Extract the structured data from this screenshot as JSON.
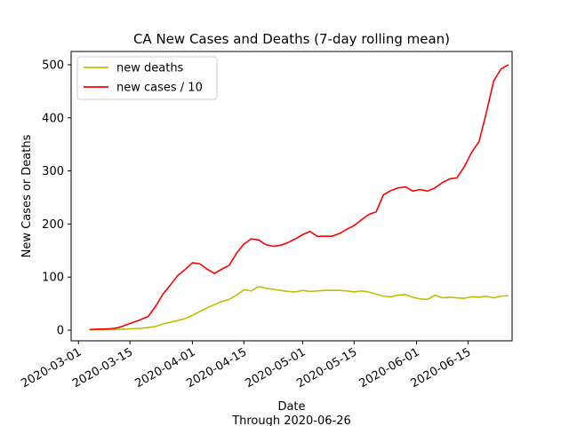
{
  "chart_data": {
    "type": "line",
    "title": "CA New Cases and Deaths (7-day rolling mean)",
    "xlabel": "Date",
    "xlabel_sub": "Through 2020-06-26",
    "ylabel": "New Cases or Deaths",
    "xlim": [
      "2020-02-28",
      "2020-06-27"
    ],
    "ylim": [
      -20,
      525
    ],
    "xticks": [
      "2020-03-01",
      "2020-03-15",
      "2020-04-01",
      "2020-04-15",
      "2020-05-01",
      "2020-05-15",
      "2020-06-01",
      "2020-06-15"
    ],
    "yticks": [
      0,
      100,
      200,
      300,
      400,
      500
    ],
    "grid": false,
    "legend": "top-left",
    "x": [
      "2020-03-04",
      "2020-03-06",
      "2020-03-08",
      "2020-03-10",
      "2020-03-12",
      "2020-03-14",
      "2020-03-16",
      "2020-03-18",
      "2020-03-20",
      "2020-03-22",
      "2020-03-24",
      "2020-03-26",
      "2020-03-28",
      "2020-03-30",
      "2020-04-01",
      "2020-04-03",
      "2020-04-05",
      "2020-04-07",
      "2020-04-09",
      "2020-04-11",
      "2020-04-13",
      "2020-04-15",
      "2020-04-17",
      "2020-04-19",
      "2020-04-21",
      "2020-04-23",
      "2020-04-25",
      "2020-04-27",
      "2020-04-29",
      "2020-05-01",
      "2020-05-03",
      "2020-05-05",
      "2020-05-07",
      "2020-05-09",
      "2020-05-11",
      "2020-05-13",
      "2020-05-15",
      "2020-05-17",
      "2020-05-19",
      "2020-05-21",
      "2020-05-23",
      "2020-05-25",
      "2020-05-27",
      "2020-05-29",
      "2020-05-31",
      "2020-06-02",
      "2020-06-04",
      "2020-06-06",
      "2020-06-08",
      "2020-06-10",
      "2020-06-12",
      "2020-06-14",
      "2020-06-16",
      "2020-06-18",
      "2020-06-20",
      "2020-06-22",
      "2020-06-24",
      "2020-06-26"
    ],
    "series": [
      {
        "name": "new deaths",
        "color": "#bfbf00",
        "values": [
          0.5,
          0.8,
          1,
          1.2,
          1.5,
          2,
          3,
          3.5,
          5,
          7,
          12,
          15,
          18,
          22,
          28,
          35,
          42,
          48,
          54,
          58,
          66,
          76,
          74,
          82,
          79,
          77,
          75,
          73,
          72,
          75,
          73,
          74,
          75,
          75,
          75,
          74,
          72,
          74,
          72,
          68,
          64,
          63,
          66,
          67,
          62,
          59,
          58,
          66,
          61,
          62,
          61,
          60,
          63,
          62,
          64,
          61,
          64,
          65
        ]
      },
      {
        "name": "new cases / 10",
        "color": "#ff0000",
        "values": [
          1,
          2,
          2,
          3,
          5,
          10,
          15,
          20,
          26,
          45,
          68,
          85,
          103,
          114,
          127,
          125,
          115,
          107,
          115,
          122,
          145,
          162,
          172,
          170,
          161,
          158,
          160,
          165,
          172,
          180,
          186,
          177,
          177,
          177,
          182,
          190,
          197,
          208,
          218,
          223,
          255,
          263,
          268,
          270,
          262,
          265,
          262,
          268,
          278,
          285,
          287,
          308,
          335,
          355,
          410,
          470,
          492,
          500
        ]
      }
    ]
  }
}
